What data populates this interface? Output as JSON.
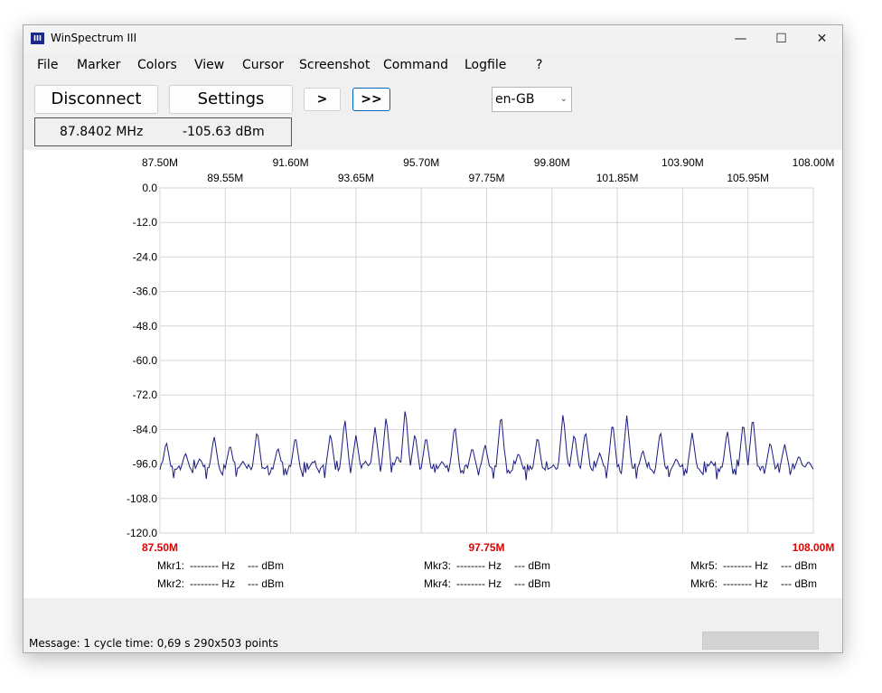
{
  "window": {
    "title": "WinSpectrum III",
    "icon_name": "winspectrum-app-icon",
    "icon_text": "III"
  },
  "window_controls": {
    "minimize": "—",
    "maximize": "☐",
    "close": "✕"
  },
  "menu": [
    "File",
    "Marker",
    "Colors",
    "View",
    "Cursor",
    "Screenshot",
    "Command",
    "Logfile",
    "?"
  ],
  "toolbar": {
    "disconnect_label": "Disconnect",
    "settings_label": "Settings",
    "step_label": ">",
    "run_label": ">>",
    "language_value": "en-GB"
  },
  "readout": {
    "frequency": "87.8402 MHz",
    "level": "-105.63 dBm"
  },
  "colors": {
    "trace": "#1a1a80",
    "grid": "#d6d6d6",
    "marker_freq": "#e00000"
  },
  "chart_data": {
    "type": "line",
    "x_unit": "MHz",
    "y_unit": "dBm",
    "xlim": [
      87.5,
      108.0
    ],
    "ylim": [
      -120.0,
      0.0
    ],
    "grid": true,
    "x_ticks_top_row": [
      "87.50M",
      "91.60M",
      "95.70M",
      "99.80M",
      "103.90M",
      "108.00M"
    ],
    "x_ticks_second_row": [
      "89.55M",
      "93.65M",
      "97.75M",
      "101.85M",
      "105.95M"
    ],
    "y_ticks": [
      "0.0",
      "-12.0",
      "-24.0",
      "-36.0",
      "-48.0",
      "-60.0",
      "-72.0",
      "-84.0",
      "-96.0",
      "-108.0",
      "-120.0"
    ],
    "x_ticks_bottom": [
      "87.50M",
      "97.75M",
      "108.00M"
    ],
    "noise_floor": -98.0,
    "peaks": [
      {
        "f": 87.7,
        "v": -88
      },
      {
        "f": 88.3,
        "v": -92
      },
      {
        "f": 88.75,
        "v": -94
      },
      {
        "f": 89.2,
        "v": -86
      },
      {
        "f": 89.7,
        "v": -89
      },
      {
        "f": 90.1,
        "v": -95
      },
      {
        "f": 90.55,
        "v": -84
      },
      {
        "f": 91.2,
        "v": -90
      },
      {
        "f": 91.75,
        "v": -86
      },
      {
        "f": 92.3,
        "v": -95
      },
      {
        "f": 92.85,
        "v": -85
      },
      {
        "f": 93.3,
        "v": -80
      },
      {
        "f": 93.65,
        "v": -86
      },
      {
        "f": 93.95,
        "v": -95
      },
      {
        "f": 94.25,
        "v": -83
      },
      {
        "f": 94.6,
        "v": -79
      },
      {
        "f": 94.95,
        "v": -93
      },
      {
        "f": 95.2,
        "v": -76
      },
      {
        "f": 95.5,
        "v": -85
      },
      {
        "f": 95.85,
        "v": -86
      },
      {
        "f": 96.35,
        "v": -95
      },
      {
        "f": 96.75,
        "v": -82
      },
      {
        "f": 97.3,
        "v": -90
      },
      {
        "f": 97.7,
        "v": -89
      },
      {
        "f": 98.2,
        "v": -78
      },
      {
        "f": 98.75,
        "v": -92
      },
      {
        "f": 99.35,
        "v": -86
      },
      {
        "f": 99.8,
        "v": -97
      },
      {
        "f": 100.15,
        "v": -78
      },
      {
        "f": 100.5,
        "v": -85
      },
      {
        "f": 100.85,
        "v": -84
      },
      {
        "f": 101.3,
        "v": -92
      },
      {
        "f": 101.7,
        "v": -81
      },
      {
        "f": 102.15,
        "v": -79
      },
      {
        "f": 102.65,
        "v": -91
      },
      {
        "f": 103.2,
        "v": -84
      },
      {
        "f": 103.7,
        "v": -94
      },
      {
        "f": 104.2,
        "v": -85
      },
      {
        "f": 104.8,
        "v": -95
      },
      {
        "f": 105.3,
        "v": -84
      },
      {
        "f": 105.8,
        "v": -81
      },
      {
        "f": 106.1,
        "v": -79
      },
      {
        "f": 106.65,
        "v": -88
      },
      {
        "f": 107.1,
        "v": -89
      },
      {
        "f": 107.55,
        "v": -93
      },
      {
        "f": 107.85,
        "v": -95
      }
    ]
  },
  "markers": [
    {
      "label": "Mkr1:",
      "hz": "-------- Hz",
      "dbm": "--- dBm"
    },
    {
      "label": "Mkr2:",
      "hz": "-------- Hz",
      "dbm": "--- dBm"
    },
    {
      "label": "Mkr3:",
      "hz": "-------- Hz",
      "dbm": "--- dBm"
    },
    {
      "label": "Mkr4:",
      "hz": "-------- Hz",
      "dbm": "--- dBm"
    },
    {
      "label": "Mkr5:",
      "hz": "-------- Hz",
      "dbm": "--- dBm"
    },
    {
      "label": "Mkr6:",
      "hz": "-------- Hz",
      "dbm": "--- dBm"
    }
  ],
  "status": {
    "message": "Message: 1 cycle time: 0,69 s 290x503 points"
  }
}
